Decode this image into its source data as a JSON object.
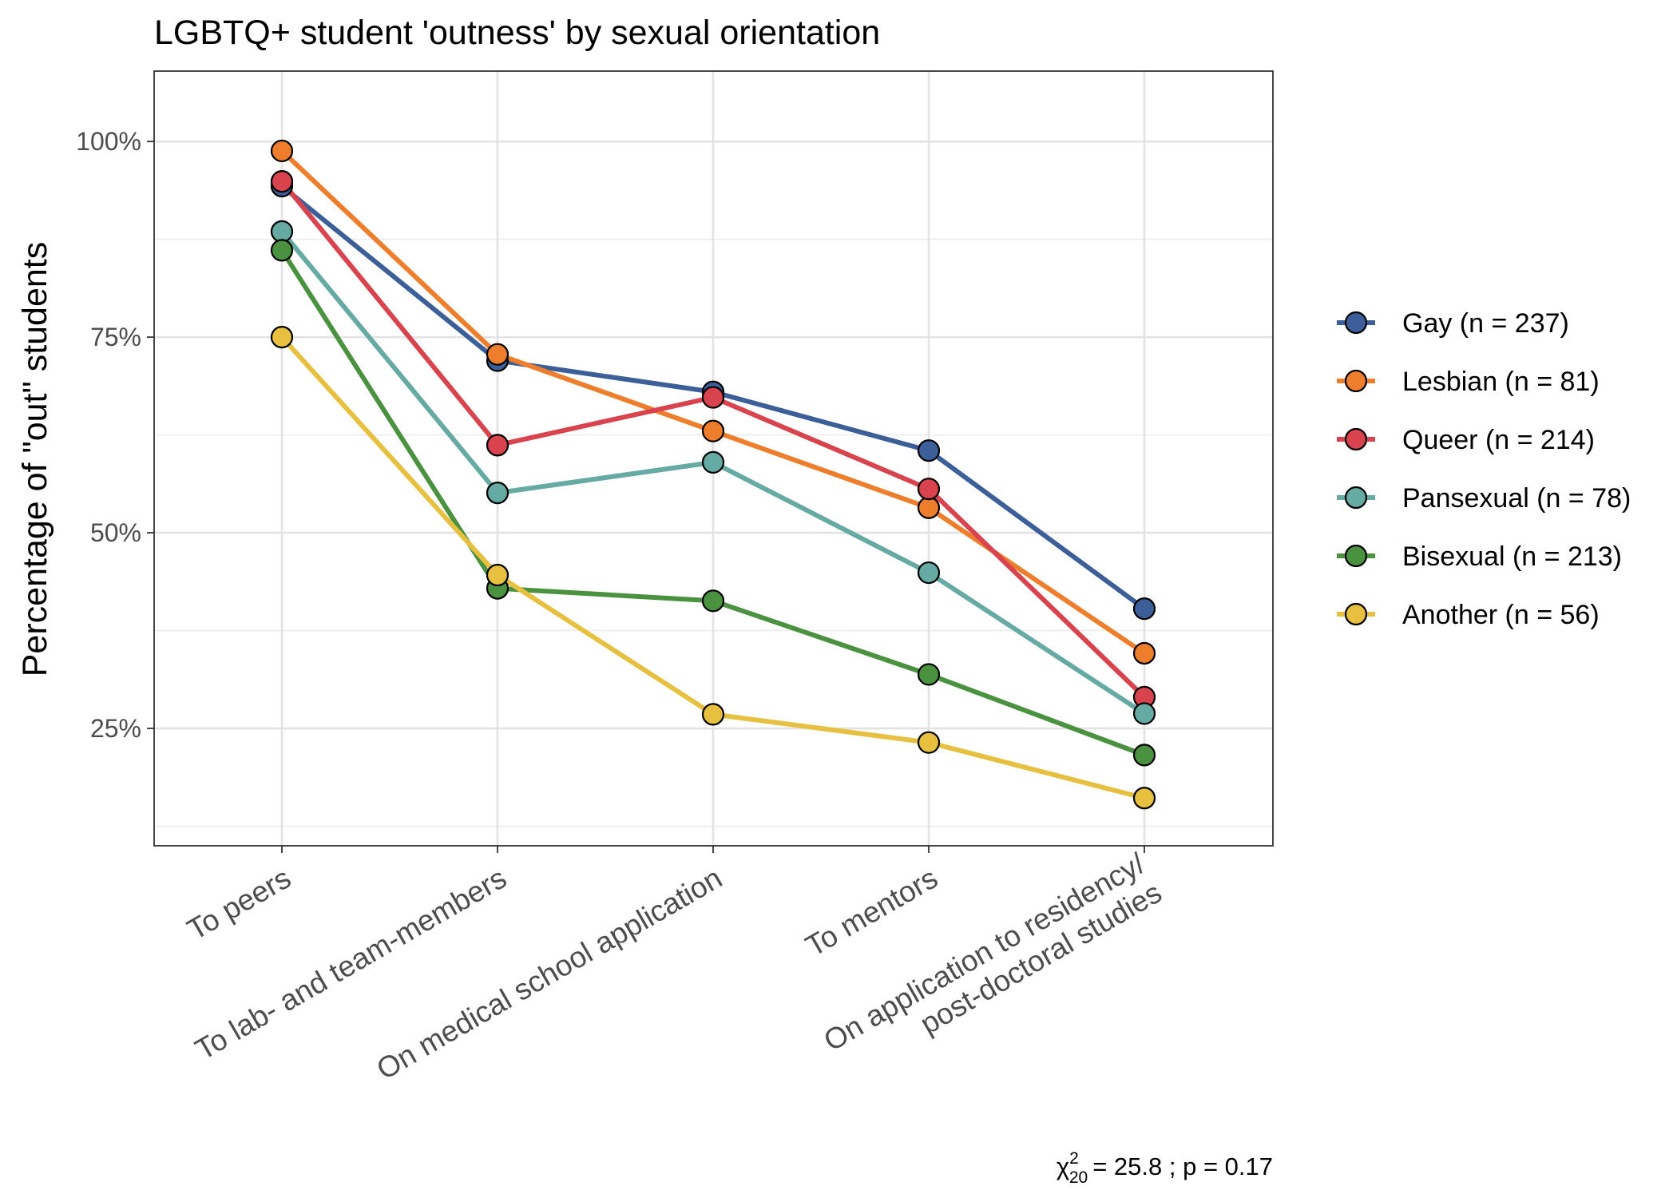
{
  "chart_data": {
    "type": "line",
    "title": "LGBTQ+ student 'outness' by sexual orientation",
    "xlabel": "",
    "ylabel": "Percentage of \"out\" students",
    "categories": [
      "To peers",
      "To lab- and team-members",
      "On medical school application",
      "To mentors",
      "On application to residency/ post-doctoral studies"
    ],
    "category_lines": [
      [
        "To peers"
      ],
      [
        "To lab- and team-members"
      ],
      [
        "On medical school application"
      ],
      [
        "To mentors"
      ],
      [
        "On application to residency/",
        "post-doctoral studies"
      ]
    ],
    "ylim": [
      0.1,
      1.09
    ],
    "yticks": [
      0.25,
      0.5,
      0.75,
      1.0
    ],
    "ytick_labels": [
      "25%",
      "50%",
      "75%",
      "100%"
    ],
    "grid": true,
    "legend_position": "right",
    "series": [
      {
        "name": "Gay (n = 237)",
        "color": "#3C5F9A",
        "values": [
          0.943,
          0.72,
          0.68,
          0.605,
          0.403
        ]
      },
      {
        "name": "Lesbian (n = 81)",
        "color": "#EE7E2B",
        "values": [
          0.988,
          0.728,
          0.63,
          0.532,
          0.346
        ]
      },
      {
        "name": "Queer (n = 214)",
        "color": "#D9434E",
        "values": [
          0.949,
          0.612,
          0.673,
          0.556,
          0.29
        ]
      },
      {
        "name": "Pansexual (n = 78)",
        "color": "#66AAA4",
        "values": [
          0.885,
          0.551,
          0.59,
          0.449,
          0.269
        ]
      },
      {
        "name": "Bisexual (n = 213)",
        "color": "#4A9240",
        "values": [
          0.861,
          0.429,
          0.413,
          0.319,
          0.216
        ]
      },
      {
        "name": "Another (n = 56)",
        "color": "#E8C03F",
        "values": [
          0.75,
          0.446,
          0.268,
          0.232,
          0.161
        ]
      }
    ],
    "annotation": {
      "symbol": "χ",
      "superscript": "2",
      "subscript": "20",
      "text": "= 25.8 ;  p = 0.17"
    }
  }
}
